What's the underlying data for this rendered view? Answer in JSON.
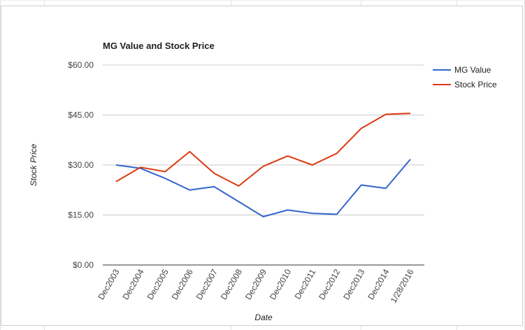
{
  "chart_data": {
    "type": "line",
    "title": "MG Value and Stock Price",
    "xlabel": "Date",
    "ylabel": "Stock Price",
    "categories": [
      "Dec2003",
      "Dec2004",
      "Dec2005",
      "Dec2006",
      "Dec2007",
      "Dec2008",
      "Dec2009",
      "Dec2010",
      "Dec2011",
      "Dec2012",
      "Dec2013",
      "Dec2014",
      "1/28/2016"
    ],
    "series": [
      {
        "name": "MG Value",
        "color": "#3366cc",
        "values": [
          30.0,
          29.0,
          26.0,
          22.5,
          23.5,
          19.0,
          14.5,
          16.5,
          15.5,
          15.2,
          24.0,
          23.0,
          31.7
        ]
      },
      {
        "name": "Stock Price",
        "color": "#dc3912",
        "values": [
          25.0,
          29.3,
          28.0,
          34.0,
          27.5,
          23.7,
          29.6,
          32.7,
          30.0,
          33.5,
          41.0,
          45.2,
          45.5
        ]
      }
    ],
    "ylim": [
      0,
      60
    ],
    "yticks": [
      0,
      15,
      30,
      45,
      60
    ],
    "ytick_labels": [
      "$0.00",
      "$15.00",
      "$30.00",
      "$45.00",
      "$60.00"
    ],
    "grid": true,
    "legend_position": "right"
  }
}
